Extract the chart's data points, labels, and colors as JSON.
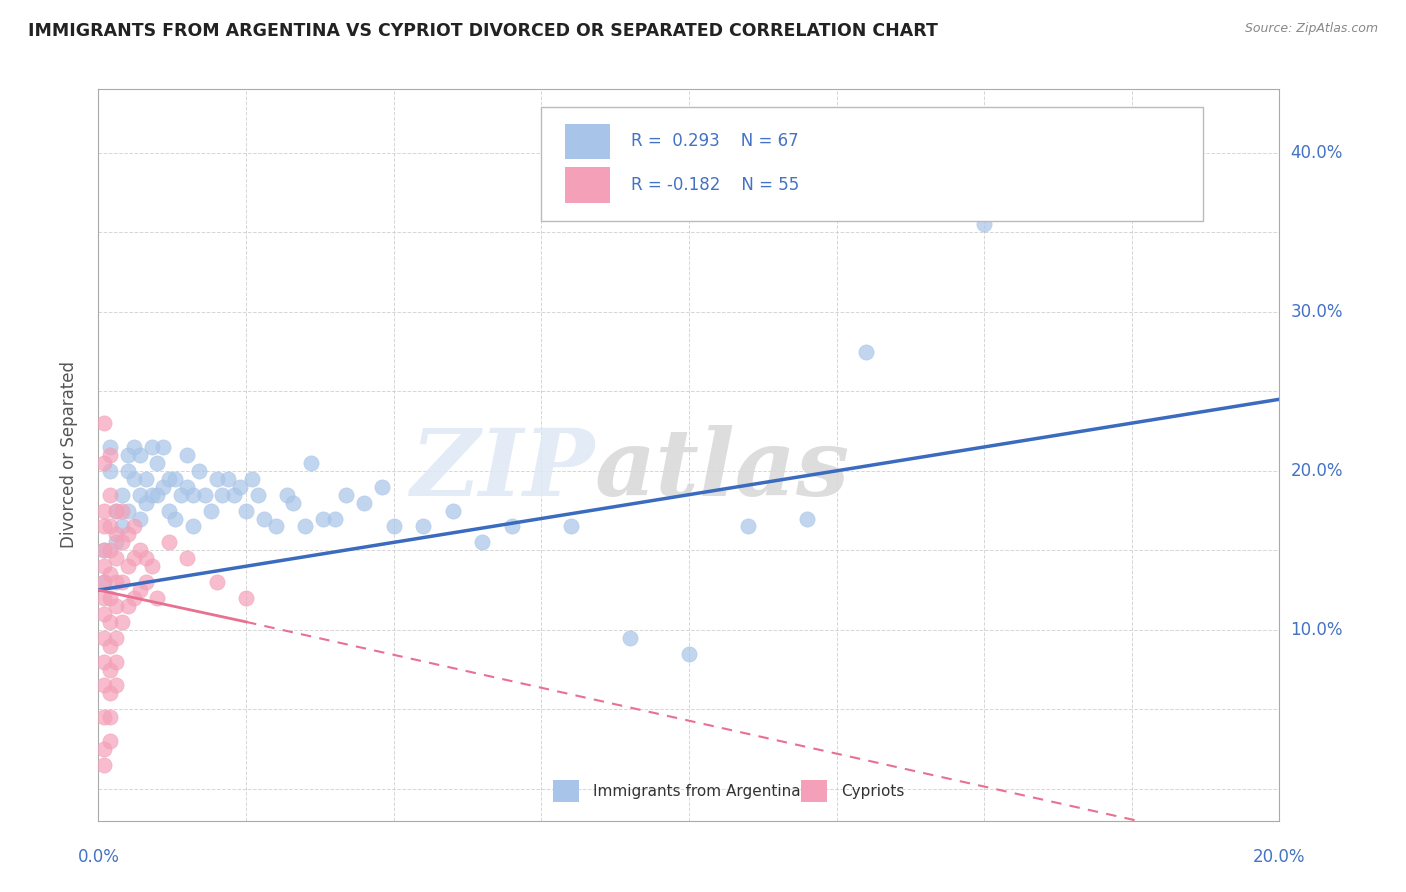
{
  "title": "IMMIGRANTS FROM ARGENTINA VS CYPRIOT DIVORCED OR SEPARATED CORRELATION CHART",
  "source": "Source: ZipAtlas.com",
  "ylabel": "Divorced or Separated",
  "yticks": [
    0.0,
    0.05,
    0.1,
    0.15,
    0.2,
    0.25,
    0.3,
    0.35,
    0.4
  ],
  "ytick_labels": [
    "",
    "",
    "10.0%",
    "",
    "20.0%",
    "",
    "30.0%",
    "",
    "40.0%"
  ],
  "xlim": [
    0.0,
    0.2
  ],
  "ylim": [
    -0.02,
    0.44
  ],
  "r_blue": 0.293,
  "n_blue": 67,
  "r_pink": -0.182,
  "n_pink": 55,
  "blue_color": "#a8c4e8",
  "pink_color": "#f4a0b8",
  "blue_line_color": "#3a6bbf",
  "pink_line_color": "#e87090",
  "legend_label_blue": "Immigrants from Argentina",
  "legend_label_pink": "Cypriots",
  "blue_trend": [
    0.0,
    0.125,
    0.2,
    0.245
  ],
  "pink_solid_trend": [
    0.0,
    0.125,
    0.025,
    0.105
  ],
  "pink_dash_trend": [
    0.025,
    0.105,
    0.2,
    -0.04
  ],
  "blue_scatter": [
    [
      0.001,
      0.13
    ],
    [
      0.001,
      0.15
    ],
    [
      0.002,
      0.2
    ],
    [
      0.002,
      0.215
    ],
    [
      0.003,
      0.175
    ],
    [
      0.003,
      0.155
    ],
    [
      0.004,
      0.185
    ],
    [
      0.004,
      0.165
    ],
    [
      0.005,
      0.2
    ],
    [
      0.005,
      0.175
    ],
    [
      0.005,
      0.21
    ],
    [
      0.006,
      0.215
    ],
    [
      0.006,
      0.195
    ],
    [
      0.007,
      0.21
    ],
    [
      0.007,
      0.185
    ],
    [
      0.007,
      0.17
    ],
    [
      0.008,
      0.195
    ],
    [
      0.008,
      0.18
    ],
    [
      0.009,
      0.215
    ],
    [
      0.009,
      0.185
    ],
    [
      0.01,
      0.205
    ],
    [
      0.01,
      0.185
    ],
    [
      0.011,
      0.19
    ],
    [
      0.011,
      0.215
    ],
    [
      0.012,
      0.195
    ],
    [
      0.012,
      0.175
    ],
    [
      0.013,
      0.195
    ],
    [
      0.013,
      0.17
    ],
    [
      0.014,
      0.185
    ],
    [
      0.015,
      0.21
    ],
    [
      0.015,
      0.19
    ],
    [
      0.016,
      0.185
    ],
    [
      0.016,
      0.165
    ],
    [
      0.017,
      0.2
    ],
    [
      0.018,
      0.185
    ],
    [
      0.019,
      0.175
    ],
    [
      0.02,
      0.195
    ],
    [
      0.021,
      0.185
    ],
    [
      0.022,
      0.195
    ],
    [
      0.023,
      0.185
    ],
    [
      0.024,
      0.19
    ],
    [
      0.025,
      0.175
    ],
    [
      0.026,
      0.195
    ],
    [
      0.027,
      0.185
    ],
    [
      0.028,
      0.17
    ],
    [
      0.03,
      0.165
    ],
    [
      0.032,
      0.185
    ],
    [
      0.033,
      0.18
    ],
    [
      0.035,
      0.165
    ],
    [
      0.036,
      0.205
    ],
    [
      0.038,
      0.17
    ],
    [
      0.04,
      0.17
    ],
    [
      0.042,
      0.185
    ],
    [
      0.045,
      0.18
    ],
    [
      0.048,
      0.19
    ],
    [
      0.05,
      0.165
    ],
    [
      0.055,
      0.165
    ],
    [
      0.06,
      0.175
    ],
    [
      0.065,
      0.155
    ],
    [
      0.07,
      0.165
    ],
    [
      0.08,
      0.165
    ],
    [
      0.09,
      0.095
    ],
    [
      0.1,
      0.085
    ],
    [
      0.11,
      0.165
    ],
    [
      0.12,
      0.17
    ],
    [
      0.13,
      0.275
    ],
    [
      0.15,
      0.355
    ]
  ],
  "pink_scatter": [
    [
      0.001,
      0.23
    ],
    [
      0.001,
      0.205
    ],
    [
      0.001,
      0.175
    ],
    [
      0.001,
      0.165
    ],
    [
      0.001,
      0.15
    ],
    [
      0.001,
      0.14
    ],
    [
      0.001,
      0.13
    ],
    [
      0.001,
      0.12
    ],
    [
      0.001,
      0.11
    ],
    [
      0.001,
      0.095
    ],
    [
      0.001,
      0.08
    ],
    [
      0.001,
      0.065
    ],
    [
      0.001,
      0.045
    ],
    [
      0.001,
      0.025
    ],
    [
      0.002,
      0.21
    ],
    [
      0.002,
      0.185
    ],
    [
      0.002,
      0.165
    ],
    [
      0.002,
      0.15
    ],
    [
      0.002,
      0.135
    ],
    [
      0.002,
      0.12
    ],
    [
      0.002,
      0.105
    ],
    [
      0.002,
      0.09
    ],
    [
      0.002,
      0.075
    ],
    [
      0.002,
      0.06
    ],
    [
      0.002,
      0.045
    ],
    [
      0.002,
      0.03
    ],
    [
      0.003,
      0.175
    ],
    [
      0.003,
      0.16
    ],
    [
      0.003,
      0.145
    ],
    [
      0.003,
      0.13
    ],
    [
      0.003,
      0.115
    ],
    [
      0.003,
      0.095
    ],
    [
      0.003,
      0.08
    ],
    [
      0.003,
      0.065
    ],
    [
      0.004,
      0.175
    ],
    [
      0.004,
      0.155
    ],
    [
      0.004,
      0.13
    ],
    [
      0.004,
      0.105
    ],
    [
      0.005,
      0.16
    ],
    [
      0.005,
      0.14
    ],
    [
      0.005,
      0.115
    ],
    [
      0.006,
      0.165
    ],
    [
      0.006,
      0.145
    ],
    [
      0.006,
      0.12
    ],
    [
      0.007,
      0.15
    ],
    [
      0.007,
      0.125
    ],
    [
      0.008,
      0.145
    ],
    [
      0.008,
      0.13
    ],
    [
      0.009,
      0.14
    ],
    [
      0.01,
      0.12
    ],
    [
      0.012,
      0.155
    ],
    [
      0.015,
      0.145
    ],
    [
      0.02,
      0.13
    ],
    [
      0.025,
      0.12
    ],
    [
      0.001,
      0.015
    ]
  ]
}
